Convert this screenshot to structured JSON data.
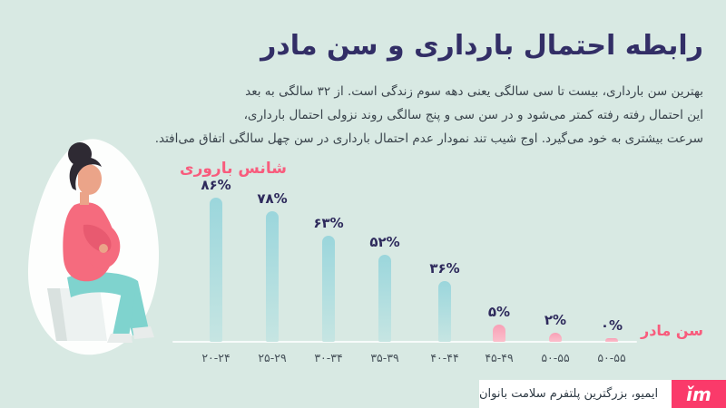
{
  "header": {
    "title": "رابطه احتمال بارداری و سن مادر"
  },
  "intro": {
    "lines": [
      "بهترین سن بارداری، بیست تا سی سالگی یعنی دهه سوم زندگی است. از ۳۲ سالگی به بعد",
      "این احتمال رفته رفته کمتر می‌شود و در سن سی و پنج سالگی روند نزولی احتمال بارداری،",
      "سرعت بیشتری به خود می‌گیرد. اوج شیب تند نمودار عدم احتمال بارداری در سن چهل سالگی اتفاق می‌افتد."
    ]
  },
  "chart_data": {
    "type": "bar",
    "series_label": "شانس باروری",
    "xlabel": "سن مادر",
    "categories": [
      "۲۰-۲۴",
      "۲۵-۲۹",
      "۳۰-۳۴",
      "۳۵-۳۹",
      "۴۰-۴۴",
      "۴۵-۴۹",
      "۵۰-۵۵",
      "۵۰-۵۵"
    ],
    "categories_latin": [
      "20-24",
      "25-29",
      "30-34",
      "35-39",
      "40-44",
      "45-49",
      "50-55",
      "50-55"
    ],
    "values": [
      86,
      78,
      63,
      52,
      36,
      5,
      2,
      0
    ],
    "value_labels": [
      "۸۶%",
      "۷۸%",
      "۶۳%",
      "۵۲%",
      "۳۶%",
      "۵%",
      "۲%",
      "۰%"
    ],
    "bar_colors": [
      "teal",
      "teal",
      "teal",
      "teal",
      "teal",
      "pink",
      "pink",
      "pink"
    ],
    "ylim": [
      0,
      100
    ],
    "grid": false,
    "legend_position": "top-left-of-bars",
    "colors": {
      "background": "#D8E9E3",
      "title": "#322E66",
      "body_text": "#39434B",
      "accent_pink": "#F85C7D",
      "bar_teal": "#9BD6DC",
      "bar_pink": "#F8A0B6",
      "value_label": "#2E2A5C",
      "axis_line": "#FFFFFF"
    }
  },
  "illustration": {
    "name": "pregnant-woman-sitting-on-stool"
  },
  "footer": {
    "text": "ایمیو، بزرگترین پلتفرم سلامت بانوان",
    "logo_text": "ǐm",
    "logo_color": "#FA3A6A"
  }
}
